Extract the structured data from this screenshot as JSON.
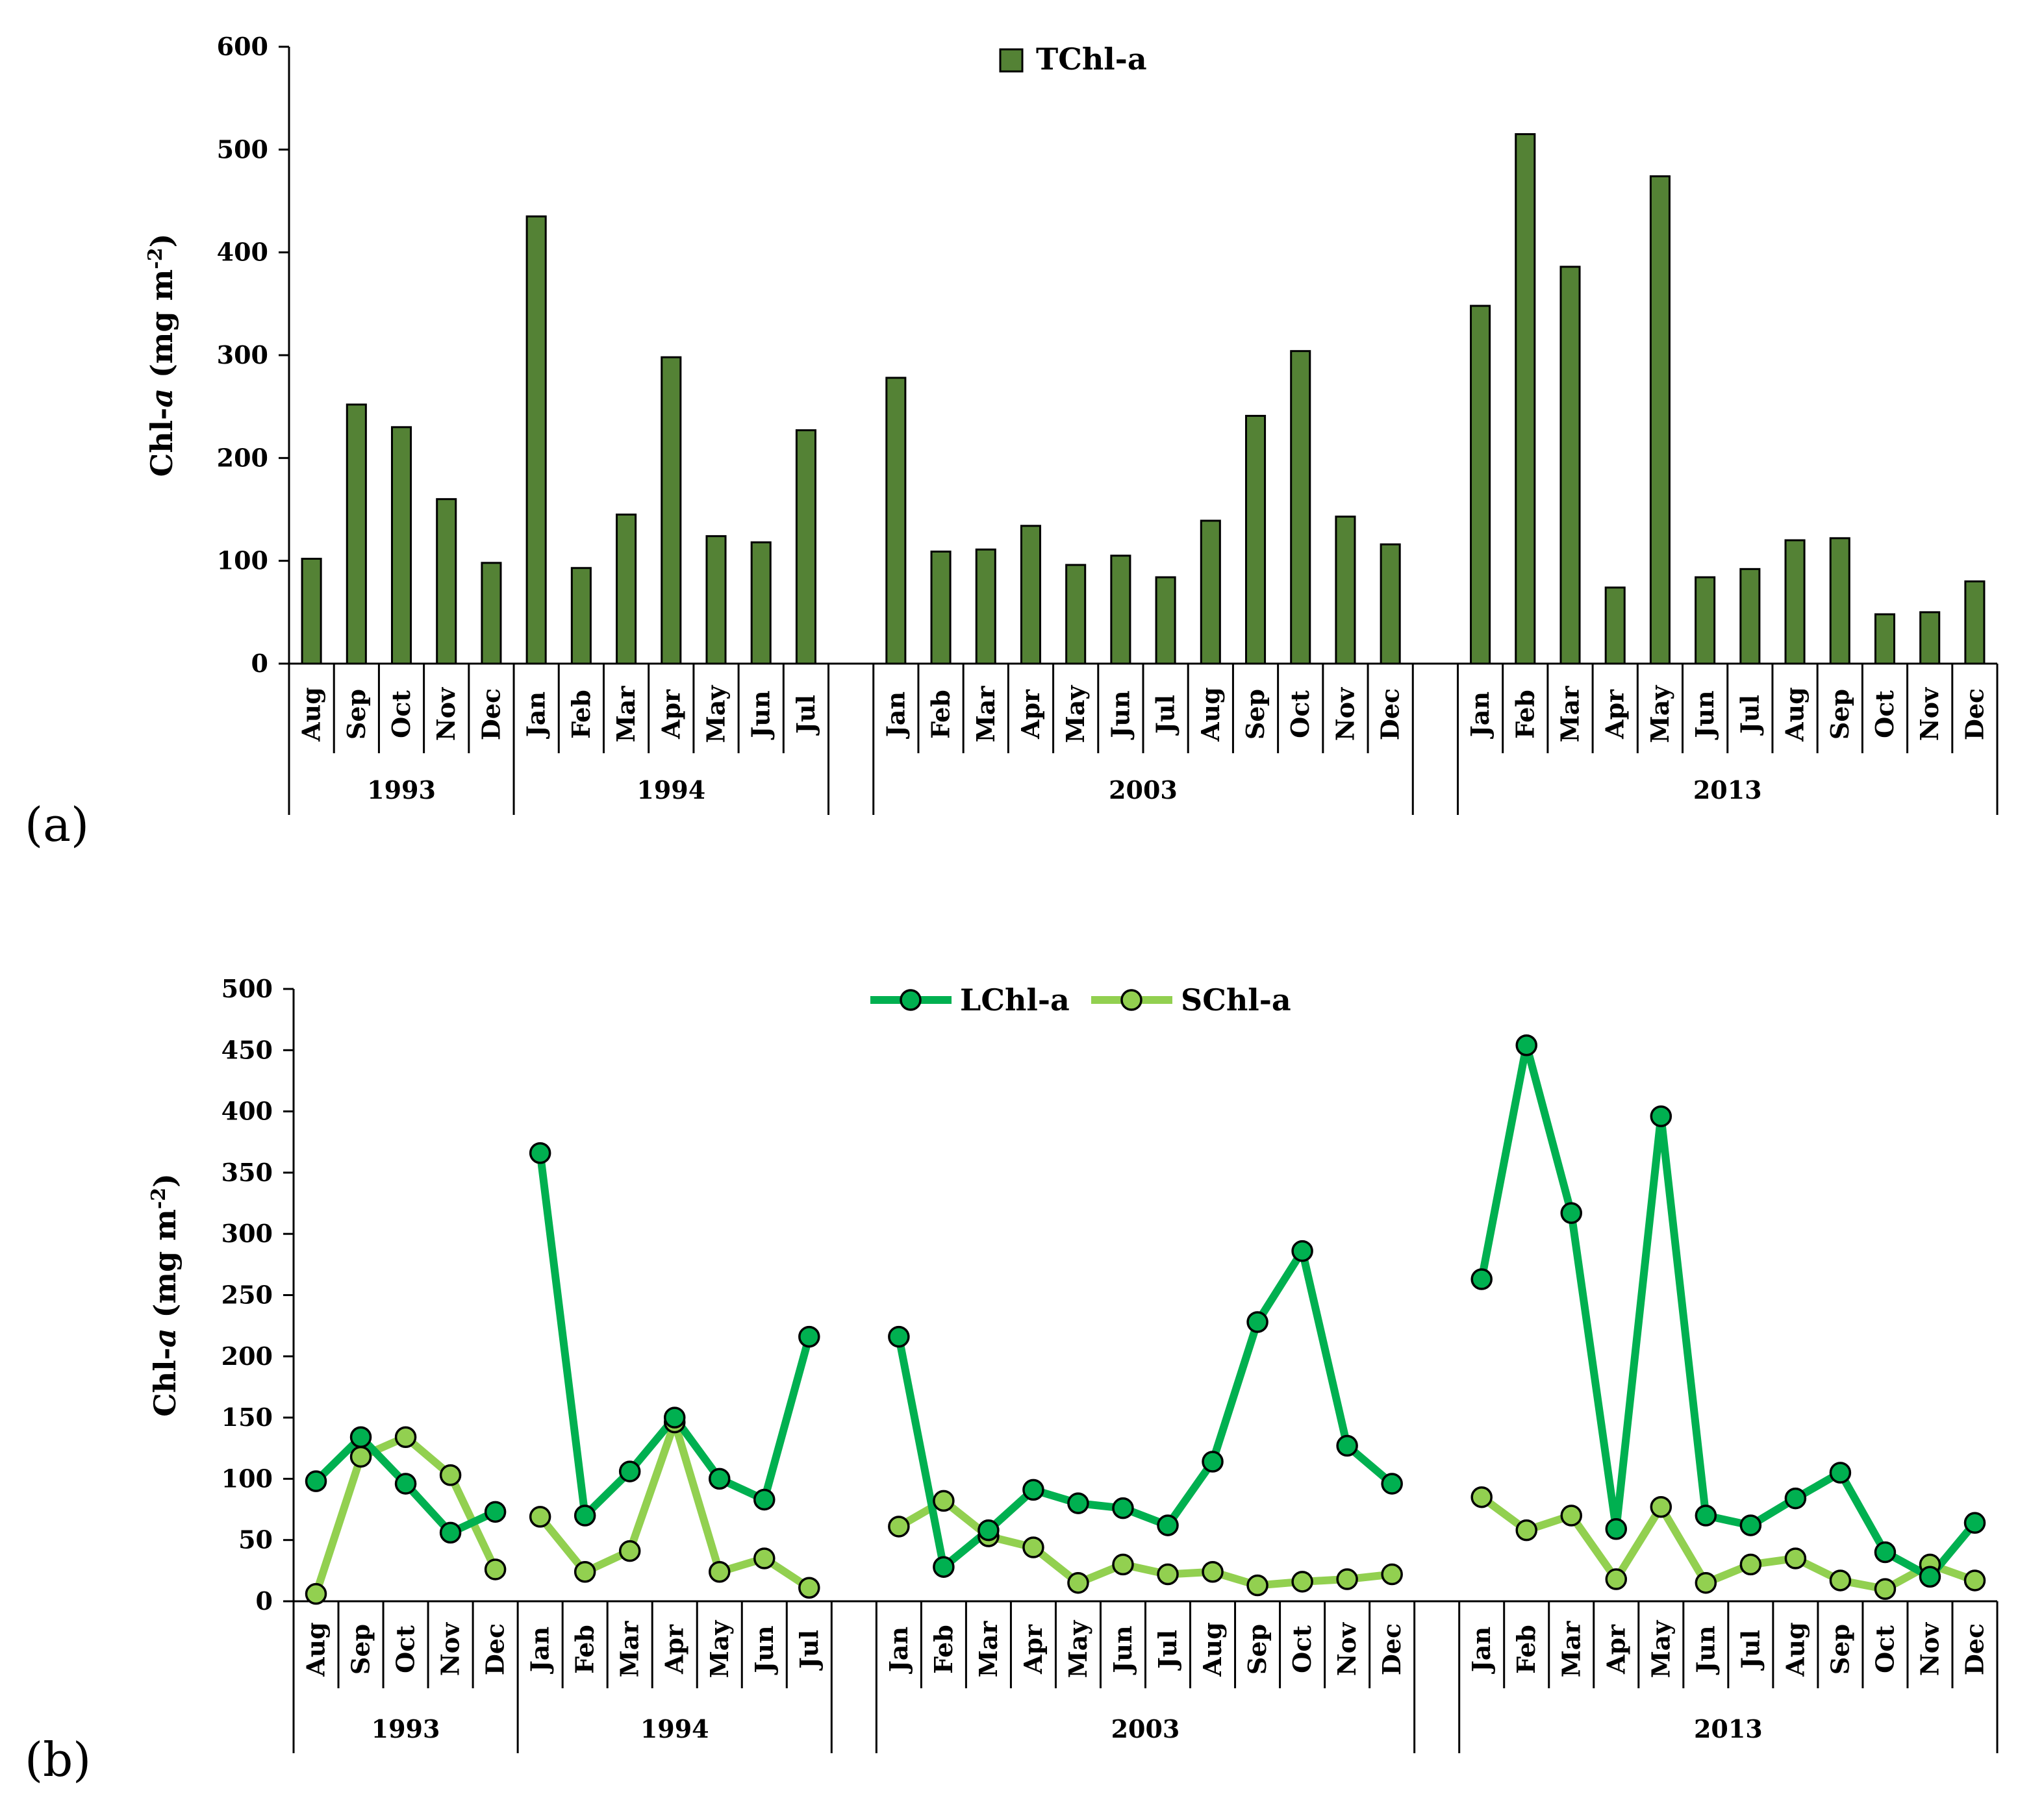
{
  "colors": {
    "tchl": "#548235",
    "lchl": "#00B050",
    "schl": "#92D050",
    "axis": "#000000"
  },
  "groups": [
    {
      "year": "1993",
      "months": [
        "Aug",
        "Sep",
        "Oct",
        "Nov",
        "Dec"
      ]
    },
    {
      "year": "1994",
      "months": [
        "Jan",
        "Feb",
        "Mar",
        "Apr",
        "May",
        "Jun",
        "Jul"
      ]
    },
    {
      "year": "2003",
      "months": [
        "Jan",
        "Feb",
        "Mar",
        "Apr",
        "May",
        "Jun",
        "Jul",
        "Aug",
        "Sep",
        "Oct",
        "Nov",
        "Dec"
      ]
    },
    {
      "year": "2013",
      "months": [
        "Jan",
        "Feb",
        "Mar",
        "Apr",
        "May",
        "Jun",
        "Jul",
        "Aug",
        "Sep",
        "Oct",
        "Nov",
        "Dec"
      ]
    }
  ],
  "chart_data": [
    {
      "panel": "(a)",
      "type": "bar",
      "ylabel_main": "Chl-",
      "ylabel_italic": "a",
      "ylabel_units": " (mg m",
      "ylabel_sup": "-2",
      "ylabel_close": ")",
      "ylim": [
        0,
        600
      ],
      "yticks": [
        0,
        100,
        200,
        300,
        400,
        500,
        600
      ],
      "legend_position": "top-center",
      "series": [
        {
          "name": "TChl-a",
          "values": [
            [
              102,
              252,
              230,
              160,
              98
            ],
            [
              435,
              93,
              145,
              298,
              124,
              118,
              227
            ],
            [
              278,
              109,
              111,
              134,
              96,
              105,
              84,
              139,
              241,
              304,
              143,
              116
            ],
            [
              348,
              515,
              386,
              74,
              474,
              84,
              92,
              120,
              122,
              48,
              50,
              80
            ]
          ]
        }
      ]
    },
    {
      "panel": "(b)",
      "type": "line",
      "ylabel_main": "Chl-",
      "ylabel_italic": "a",
      "ylabel_units": " (mg m",
      "ylabel_sup": "-2",
      "ylabel_close": ")",
      "ylim": [
        0,
        500
      ],
      "yticks": [
        0,
        50,
        100,
        150,
        200,
        250,
        300,
        350,
        400,
        450,
        500
      ],
      "legend_position": "top-center",
      "series": [
        {
          "name": "LChl-a",
          "values": [
            [
              98,
              134,
              96,
              56,
              73
            ],
            [
              366,
              70,
              106,
              150,
              100,
              83,
              216
            ],
            [
              216,
              28,
              58,
              91,
              80,
              76,
              62,
              114,
              228,
              286,
              127,
              96
            ],
            [
              263,
              454,
              317,
              59,
              396,
              70,
              62,
              84,
              105,
              40,
              20,
              64
            ]
          ]
        },
        {
          "name": "SChl-a",
          "values": [
            [
              6,
              118,
              134,
              103,
              26
            ],
            [
              69,
              24,
              41,
              146,
              24,
              35,
              11
            ],
            [
              61,
              82,
              53,
              44,
              15,
              30,
              22,
              24,
              13,
              16,
              18,
              22
            ],
            [
              85,
              58,
              70,
              18,
              77,
              15,
              30,
              35,
              17,
              10,
              30,
              17
            ]
          ]
        }
      ]
    }
  ]
}
